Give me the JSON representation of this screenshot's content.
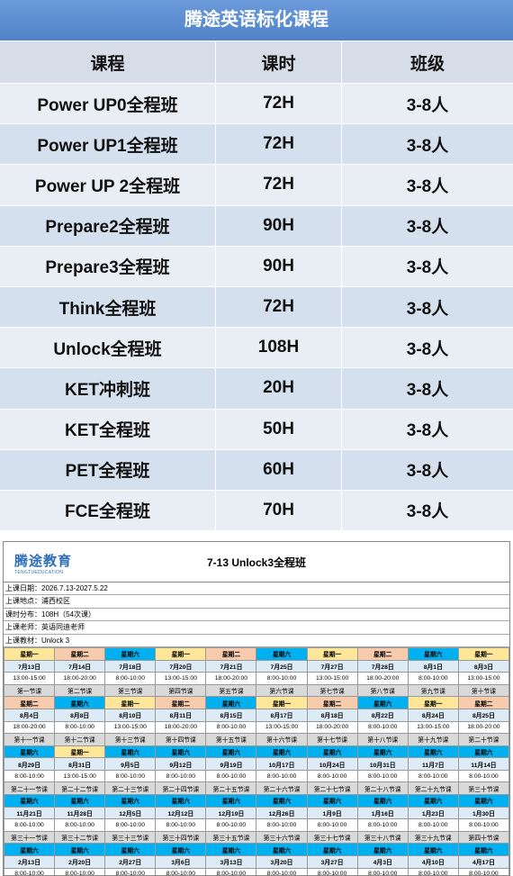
{
  "course_table": {
    "title": "腾途英语标化课程",
    "header": [
      "课程",
      "课时",
      "班级"
    ],
    "rows": [
      [
        "Power UP0全程班",
        "72H",
        "3-8人"
      ],
      [
        "Power UP1全程班",
        "72H",
        "3-8人"
      ],
      [
        "Power UP 2全程班",
        "72H",
        "3-8人"
      ],
      [
        "Prepare2全程班",
        "90H",
        "3-8人"
      ],
      [
        "Prepare3全程班",
        "90H",
        "3-8人"
      ],
      [
        "Think全程班",
        "72H",
        "3-8人"
      ],
      [
        "Unlock全程班",
        "108H",
        "3-8人"
      ],
      [
        "KET冲刺班",
        "20H",
        "3-8人"
      ],
      [
        "KET全程班",
        "50H",
        "3-8人"
      ],
      [
        "PET全程班",
        "60H",
        "3-8人"
      ],
      [
        "FCE全程班",
        "70H",
        "3-8人"
      ]
    ]
  },
  "schedule": {
    "logo": "腾途教育",
    "logo_sub": "TENGTUEDUCATION",
    "title": "7-13 Unlock3全程班",
    "info": [
      "上课日期：2026.7.13-2027.5.22",
      "上课地点：浦西校区",
      "课时分布：108H（54次课）",
      "上课老师：英语同迪老师",
      "上课教材：Unlock 3"
    ],
    "groups": [
      {
        "weekdays": [
          {
            "label": "星期一",
            "color": "#ffe699"
          },
          {
            "label": "星期二",
            "color": "#f8cbad"
          },
          {
            "label": "星期六",
            "color": "#00b0f0"
          },
          {
            "label": "星期一",
            "color": "#ffe699"
          },
          {
            "label": "星期二",
            "color": "#f8cbad"
          },
          {
            "label": "星期六",
            "color": "#00b0f0"
          },
          {
            "label": "星期一",
            "color": "#ffe699"
          },
          {
            "label": "星期二",
            "color": "#f8cbad"
          },
          {
            "label": "星期六",
            "color": "#00b0f0"
          },
          {
            "label": "星期一",
            "color": "#ffe699"
          }
        ],
        "dates": [
          "7月13日",
          "7月14日",
          "7月18日",
          "7月20日",
          "7月21日",
          "7月25日",
          "7月27日",
          "7月28日",
          "8月1日",
          "8月3日"
        ],
        "times": [
          "13:00-15:00",
          "18:00-20:00",
          "8:00-10:00",
          "13:00-15:00",
          "18:00-20:00",
          "8:00-10:00",
          "13:00-15:00",
          "18:00-20:00",
          "8:00-10:00",
          "13:00-15:00"
        ],
        "lessons": [
          "第一节课",
          "第二节课",
          "第三节课",
          "第四节课",
          "第五节课",
          "第六节课",
          "第七节课",
          "第八节课",
          "第九节课",
          "第十节课"
        ]
      },
      {
        "weekdays": [
          {
            "label": "星期二",
            "color": "#f8cbad"
          },
          {
            "label": "星期六",
            "color": "#00b0f0"
          },
          {
            "label": "星期一",
            "color": "#ffe699"
          },
          {
            "label": "星期二",
            "color": "#f8cbad"
          },
          {
            "label": "星期六",
            "color": "#00b0f0"
          },
          {
            "label": "星期一",
            "color": "#ffe699"
          },
          {
            "label": "星期二",
            "color": "#f8cbad"
          },
          {
            "label": "星期六",
            "color": "#00b0f0"
          },
          {
            "label": "星期一",
            "color": "#ffe699"
          },
          {
            "label": "星期二",
            "color": "#f8cbad"
          }
        ],
        "dates": [
          "8月4日",
          "8月8日",
          "8月10日",
          "8月11日",
          "8月15日",
          "8月17日",
          "8月18日",
          "8月22日",
          "8月24日",
          "8月25日"
        ],
        "times": [
          "18:00-20:00",
          "8:00-10:00",
          "13:00-15:00",
          "18:00-20:00",
          "8:00-10:00",
          "13:00-15:00",
          "18:00-20:00",
          "8:00-10:00",
          "13:00-15:00",
          "18:00-20:00"
        ],
        "lessons": [
          "第十一节课",
          "第十二节课",
          "第十三节课",
          "第十四节课",
          "第十五节课",
          "第十六节课",
          "第十七节课",
          "第十八节课",
          "第十九节课",
          "第二十节课"
        ]
      },
      {
        "weekdays": [
          {
            "label": "星期六",
            "color": "#00b0f0"
          },
          {
            "label": "星期一",
            "color": "#ffe699"
          },
          {
            "label": "星期六",
            "color": "#00b0f0"
          },
          {
            "label": "星期六",
            "color": "#00b0f0"
          },
          {
            "label": "星期六",
            "color": "#00b0f0"
          },
          {
            "label": "星期六",
            "color": "#00b0f0"
          },
          {
            "label": "星期六",
            "color": "#00b0f0"
          },
          {
            "label": "星期六",
            "color": "#00b0f0"
          },
          {
            "label": "星期六",
            "color": "#00b0f0"
          },
          {
            "label": "星期六",
            "color": "#00b0f0"
          }
        ],
        "dates": [
          "8月29日",
          "8月31日",
          "9月5日",
          "9月12日",
          "9月19日",
          "10月17日",
          "10月24日",
          "10月31日",
          "11月7日",
          "11月14日"
        ],
        "times": [
          "8:00-10:00",
          "13:00-15:00",
          "8:00-10:00",
          "8:00-10:00",
          "8:00-10:00",
          "8:00-10:00",
          "8:00-10:00",
          "8:00-10:00",
          "8:00-10:00",
          "8:00-10:00"
        ],
        "lessons": [
          "第二十一节课",
          "第二十二节课",
          "第二十三节课",
          "第二十四节课",
          "第二十五节课",
          "第二十六节课",
          "第二十七节课",
          "第二十八节课",
          "第二十九节课",
          "第三十节课"
        ]
      },
      {
        "weekdays": [
          {
            "label": "星期六",
            "color": "#00b0f0"
          },
          {
            "label": "星期六",
            "color": "#00b0f0"
          },
          {
            "label": "星期六",
            "color": "#00b0f0"
          },
          {
            "label": "星期六",
            "color": "#00b0f0"
          },
          {
            "label": "星期六",
            "color": "#00b0f0"
          },
          {
            "label": "星期六",
            "color": "#00b0f0"
          },
          {
            "label": "星期六",
            "color": "#00b0f0"
          },
          {
            "label": "星期六",
            "color": "#00b0f0"
          },
          {
            "label": "星期六",
            "color": "#00b0f0"
          },
          {
            "label": "星期六",
            "color": "#00b0f0"
          }
        ],
        "dates": [
          "11月21日",
          "11月28日",
          "12月5日",
          "12月12日",
          "12月19日",
          "12月26日",
          "1月9日",
          "1月16日",
          "1月23日",
          "1月30日"
        ],
        "times": [
          "8:00-10:00",
          "8:00-10:00",
          "8:00-10:00",
          "8:00-10:00",
          "8:00-10:00",
          "8:00-10:00",
          "8:00-10:00",
          "8:00-10:00",
          "8:00-10:00",
          "8:00-10:00"
        ],
        "lessons": [
          "第三十一节课",
          "第三十二节课",
          "第三十三节课",
          "第三十四节课",
          "第三十五节课",
          "第三十六节课",
          "第三十七节课",
          "第三十八节课",
          "第三十九节课",
          "第四十节课"
        ]
      },
      {
        "weekdays": [
          {
            "label": "星期六",
            "color": "#00b0f0"
          },
          {
            "label": "星期六",
            "color": "#00b0f0"
          },
          {
            "label": "星期六",
            "color": "#00b0f0"
          },
          {
            "label": "星期六",
            "color": "#00b0f0"
          },
          {
            "label": "星期六",
            "color": "#00b0f0"
          },
          {
            "label": "星期六",
            "color": "#00b0f0"
          },
          {
            "label": "星期六",
            "color": "#00b0f0"
          },
          {
            "label": "星期六",
            "color": "#00b0f0"
          },
          {
            "label": "星期六",
            "color": "#00b0f0"
          },
          {
            "label": "星期六",
            "color": "#00b0f0"
          }
        ],
        "dates": [
          "2月13日",
          "2月20日",
          "2月27日",
          "3月6日",
          "3月13日",
          "3月20日",
          "3月27日",
          "4月3日",
          "4月10日",
          "4月17日"
        ],
        "times": [
          "8:00-10:00",
          "8:00-10:00",
          "8:00-10:00",
          "8:00-10:00",
          "8:00-10:00",
          "8:00-10:00",
          "8:00-10:00",
          "8:00-10:00",
          "8:00-10:00",
          "8:00-10:00"
        ]
      }
    ]
  }
}
